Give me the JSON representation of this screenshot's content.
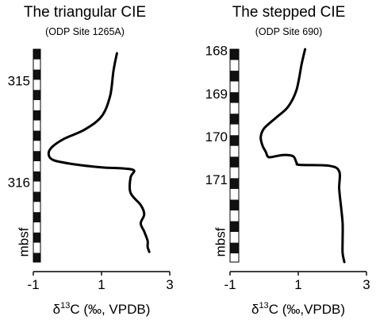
{
  "chart_data": [
    {
      "type": "line",
      "title": "The triangular CIE",
      "subtitle": "(ODP Site 1265A)",
      "xlabel_parts": {
        "pre": "δ",
        "sup": "13",
        "post": "C (‰, VPDB)"
      },
      "ylabel": "mbsf",
      "xlim": [
        -1,
        3
      ],
      "xticks": [
        -1,
        1,
        3
      ],
      "ylim": [
        314.69,
        316.78
      ],
      "yticks": [
        315,
        316
      ],
      "y_inverted": true,
      "grid": false,
      "depth_scale_bar": {
        "start": 314.69,
        "end": 316.78,
        "segment": 0.1
      },
      "series": [
        {
          "x": [
            1.45,
            1.35,
            1.25,
            1.0,
            0.5,
            -0.1,
            -0.45,
            -0.55,
            -0.4,
            0.2,
            1.0,
            1.6,
            1.95,
            1.85,
            1.85,
            2.15,
            2.25,
            2.15,
            2.25,
            2.35,
            2.35,
            2.4
          ],
          "y": [
            314.73,
            314.9,
            315.15,
            315.35,
            315.48,
            315.57,
            315.65,
            315.72,
            315.78,
            315.82,
            315.85,
            315.86,
            315.88,
            315.95,
            316.1,
            316.22,
            316.31,
            316.4,
            316.48,
            316.57,
            316.63,
            316.68
          ]
        }
      ]
    },
    {
      "type": "line",
      "title": "The stepped CIE",
      "subtitle": "(ODP Site 690)",
      "xlabel_parts": {
        "pre": "δ",
        "sup": "13",
        "post": "C (‰,VPDB)"
      },
      "ylabel": "mbsf",
      "xlim": [
        -1,
        3
      ],
      "xticks": [
        -1,
        1,
        3
      ],
      "ylim": [
        167.96,
        172.91
      ],
      "yticks": [
        168,
        169,
        170,
        171
      ],
      "y_inverted": true,
      "grid": false,
      "depth_scale_bar": {
        "start": 167.96,
        "end": 172.91,
        "segment": 0.25
      },
      "series": [
        {
          "x": [
            1.2,
            1.1,
            0.95,
            0.7,
            0.35,
            0.0,
            -0.1,
            -0.05,
            0.05,
            0.1,
            0.2,
            0.55,
            0.85,
            0.95,
            1.05,
            1.9,
            2.2,
            2.2,
            2.25,
            2.3,
            2.3,
            2.3,
            2.35
          ],
          "y": [
            167.96,
            168.3,
            168.9,
            169.3,
            169.55,
            169.8,
            170.0,
            170.2,
            170.35,
            170.45,
            170.47,
            170.42,
            170.45,
            170.6,
            170.65,
            170.67,
            170.8,
            171.2,
            171.6,
            172.0,
            172.4,
            172.7,
            172.91
          ]
        }
      ]
    }
  ]
}
